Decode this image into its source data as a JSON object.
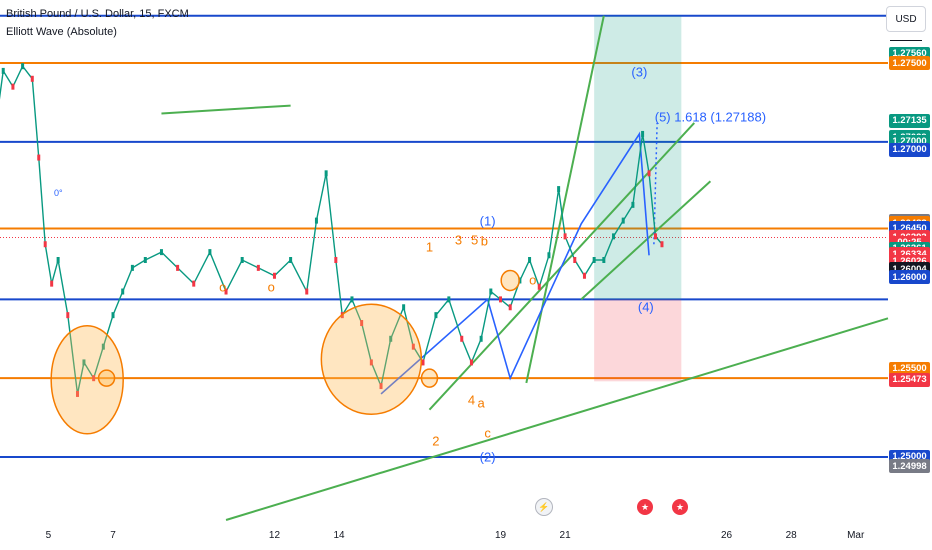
{
  "header": {
    "symbol": "British Pound / U.S. Dollar, 15, FXCM",
    "indicator": "Elliott Wave (Absolute)"
  },
  "currency_button": "USD",
  "x_ticks": [
    {
      "label": "5",
      "x": 5
    },
    {
      "label": "7",
      "x": 7
    },
    {
      "label": "12",
      "x": 12
    },
    {
      "label": "14",
      "x": 14
    },
    {
      "label": "19",
      "x": 19
    },
    {
      "label": "21",
      "x": 21
    },
    {
      "label": "26",
      "x": 26
    },
    {
      "label": "28",
      "x": 28
    },
    {
      "label": "Mar",
      "x": 30
    }
  ],
  "price_labels": [
    {
      "text": "1.27560",
      "price": 1.2756,
      "color": "#089981"
    },
    {
      "text": "1.27500",
      "price": 1.275,
      "color": "#f57c00"
    },
    {
      "text": "1.27135",
      "price": 1.27135,
      "color": "#089981"
    },
    {
      "text": "1.27029",
      "price": 1.27029,
      "color": "#089981"
    },
    {
      "text": "1.27000",
      "price": 1.27,
      "color": "#089981"
    },
    {
      "text": "1.27000",
      "price": 1.2695,
      "color": "#1848cc"
    },
    {
      "text": "1.26497",
      "price": 1.26497,
      "color": "#787b86"
    },
    {
      "text": "1.26483",
      "price": 1.26483,
      "color": "#f57c00"
    },
    {
      "text": "1.26450",
      "price": 1.2645,
      "color": "#1848cc"
    },
    {
      "text": "1.26393",
      "price": 1.26393,
      "color": "#f23645"
    },
    {
      "text": "00:25",
      "price": 1.26361,
      "color": "#f23645"
    },
    {
      "text": "1.26361",
      "price": 1.2632,
      "color": "#089981"
    },
    {
      "text": "1.26334",
      "price": 1.26286,
      "color": "#f23645"
    },
    {
      "text": "1.26026",
      "price": 1.2624,
      "color": "#f23645"
    },
    {
      "text": "1.26004",
      "price": 1.2619,
      "color": "#131722"
    },
    {
      "text": "1.26000",
      "price": 1.2614,
      "color": "#1848cc"
    },
    {
      "text": "1.25500",
      "price": 1.2556,
      "color": "#f57c00"
    },
    {
      "text": "1.25473",
      "price": 1.2549,
      "color": "#f23645"
    },
    {
      "text": "1.25000",
      "price": 1.25,
      "color": "#1848cc"
    },
    {
      "text": "1.24998",
      "price": 1.2494,
      "color": "#787b86"
    }
  ],
  "fib_label": "0°",
  "wave_labels": [
    {
      "text": "(1)",
      "x": 18.6,
      "y": 1.265,
      "color": "#2962ff"
    },
    {
      "text": "(2)",
      "x": 18.6,
      "y": 1.25,
      "color": "#2962ff"
    },
    {
      "text": "(3)",
      "x": 23.3,
      "y": 1.2744,
      "color": "#2962ff"
    },
    {
      "text": "(4)",
      "x": 23.5,
      "y": 1.2595,
      "color": "#2962ff"
    },
    {
      "text": "(5) 1.618 (1.27188)",
      "x": 25.5,
      "y": 1.2716,
      "color": "#2962ff"
    },
    {
      "text": "1",
      "x": 16.8,
      "y": 1.2633,
      "color": "#f57c00"
    },
    {
      "text": "2",
      "x": 17.0,
      "y": 1.251,
      "color": "#f57c00"
    },
    {
      "text": "3",
      "x": 17.7,
      "y": 1.2638,
      "color": "#f57c00"
    },
    {
      "text": "5",
      "x": 18.2,
      "y": 1.2638,
      "color": "#f57c00"
    },
    {
      "text": "b",
      "x": 18.5,
      "y": 1.2637,
      "color": "#f57c00"
    },
    {
      "text": "4",
      "x": 18.1,
      "y": 1.2536,
      "color": "#f57c00"
    },
    {
      "text": "a",
      "x": 18.4,
      "y": 1.2534,
      "color": "#f57c00"
    },
    {
      "text": "c",
      "x": 18.6,
      "y": 1.2515,
      "color": "#f57c00"
    },
    {
      "text": "o",
      "x": 11.9,
      "y": 1.2608,
      "color": "#f57c00"
    },
    {
      "text": "o",
      "x": 20.0,
      "y": 1.2612,
      "color": "#f57c00"
    },
    {
      "text": "o",
      "x": 10.4,
      "y": 1.2608,
      "color": "#f57c00"
    }
  ],
  "chart_data": {
    "type": "line",
    "title": "British Pound / U.S. Dollar, 15, FXCM",
    "x_axis": "February day",
    "ylim": [
      1.246,
      1.279
    ],
    "horizontal_levels": [
      {
        "price": 1.278,
        "color": "#1848cc"
      },
      {
        "price": 1.275,
        "color": "#f57c00"
      },
      {
        "price": 1.27,
        "color": "#1848cc"
      },
      {
        "price": 1.2645,
        "color": "#f57c00"
      },
      {
        "price": 1.26,
        "color": "#1848cc"
      },
      {
        "price": 1.255,
        "color": "#f57c00"
      },
      {
        "price": 1.25,
        "color": "#1848cc"
      }
    ],
    "series": [
      {
        "name": "GBPUSD",
        "x": [
          3.0,
          3.3,
          3.6,
          3.9,
          4.2,
          4.5,
          4.7,
          4.9,
          5.1,
          5.3,
          5.6,
          5.9,
          6.1,
          6.4,
          6.7,
          7.0,
          7.3,
          7.6,
          8.0,
          8.5,
          9.0,
          9.5,
          10.0,
          10.5,
          11.0,
          11.5,
          12.0,
          12.5,
          13.0,
          13.3,
          13.6,
          13.9,
          14.1,
          14.4,
          14.7,
          15.0,
          15.3,
          15.6,
          16.0,
          16.3,
          16.6,
          17.0,
          17.4,
          17.8,
          18.1,
          18.4,
          18.7,
          19.0,
          19.3,
          19.6,
          19.9,
          20.2,
          20.5,
          20.8,
          21.0,
          21.3,
          21.6,
          21.9,
          22.2,
          22.5,
          22.8,
          23.1,
          23.4,
          23.6,
          23.8,
          24.0
        ],
        "y": [
          1.264,
          1.27,
          1.2745,
          1.2735,
          1.2748,
          1.274,
          1.269,
          1.2635,
          1.261,
          1.2625,
          1.259,
          1.254,
          1.256,
          1.255,
          1.257,
          1.259,
          1.2605,
          1.262,
          1.2625,
          1.263,
          1.262,
          1.261,
          1.263,
          1.2605,
          1.2625,
          1.262,
          1.2615,
          1.2625,
          1.2605,
          1.265,
          1.268,
          1.2625,
          1.259,
          1.26,
          1.2585,
          1.256,
          1.2545,
          1.2575,
          1.2595,
          1.257,
          1.256,
          1.259,
          1.26,
          1.2575,
          1.256,
          1.2575,
          1.2605,
          1.26,
          1.2595,
          1.2612,
          1.2625,
          1.2608,
          1.2628,
          1.267,
          1.264,
          1.2625,
          1.2615,
          1.2625,
          1.2625,
          1.264,
          1.265,
          1.266,
          1.2705,
          1.268,
          1.264,
          1.2635
        ]
      }
    ]
  }
}
